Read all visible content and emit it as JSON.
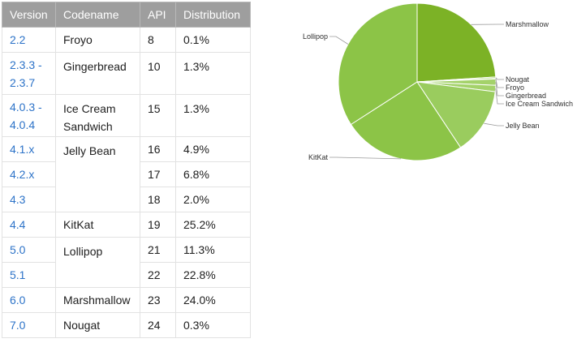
{
  "table": {
    "headers": [
      "Version",
      "Codename",
      "API",
      "Distribution"
    ],
    "rows": [
      {
        "version": "2.2",
        "codename": "Froyo",
        "api": "8",
        "distribution": "0.1%"
      },
      {
        "version": "2.3.3 - 2.3.7",
        "codename": "Gingerbread",
        "api": "10",
        "distribution": "1.3%"
      },
      {
        "version": "4.0.3 - 4.0.4",
        "codename": "Ice Cream Sandwich",
        "api": "15",
        "distribution": "1.3%"
      },
      {
        "version": "4.1.x",
        "codename": "Jelly Bean",
        "api": "16",
        "distribution": "4.9%"
      },
      {
        "version": "4.2.x",
        "codename": "",
        "api": "17",
        "distribution": "6.8%"
      },
      {
        "version": "4.3",
        "codename": "",
        "api": "18",
        "distribution": "2.0%"
      },
      {
        "version": "4.4",
        "codename": "KitKat",
        "api": "19",
        "distribution": "25.2%"
      },
      {
        "version": "5.0",
        "codename": "Lollipop",
        "api": "21",
        "distribution": "11.3%"
      },
      {
        "version": "5.1",
        "codename": "",
        "api": "22",
        "distribution": "22.8%"
      },
      {
        "version": "6.0",
        "codename": "Marshmallow",
        "api": "23",
        "distribution": "24.0%"
      },
      {
        "version": "7.0",
        "codename": "Nougat",
        "api": "24",
        "distribution": "0.3%"
      }
    ]
  },
  "colors": {
    "header_bg": "#9e9e9e",
    "version_link": "#2d73c8",
    "slice_marshmallow": "#7cb226",
    "slice_small": "#a4d26a",
    "slice_jellybean": "#9acc5e",
    "slice_kitkat": "#8cc447",
    "slice_lollipop": "#8cc447"
  },
  "chart_data": {
    "type": "pie",
    "title": "",
    "slices": [
      {
        "label": "Marshmallow",
        "value": 24.0
      },
      {
        "label": "Nougat",
        "value": 0.3
      },
      {
        "label": "Froyo",
        "value": 0.1
      },
      {
        "label": "Gingerbread",
        "value": 1.3
      },
      {
        "label": "Ice Cream Sandwich",
        "value": 1.3
      },
      {
        "label": "Jelly Bean",
        "value": 13.7
      },
      {
        "label": "KitKat",
        "value": 25.2
      },
      {
        "label": "Lollipop",
        "value": 34.1
      }
    ]
  }
}
